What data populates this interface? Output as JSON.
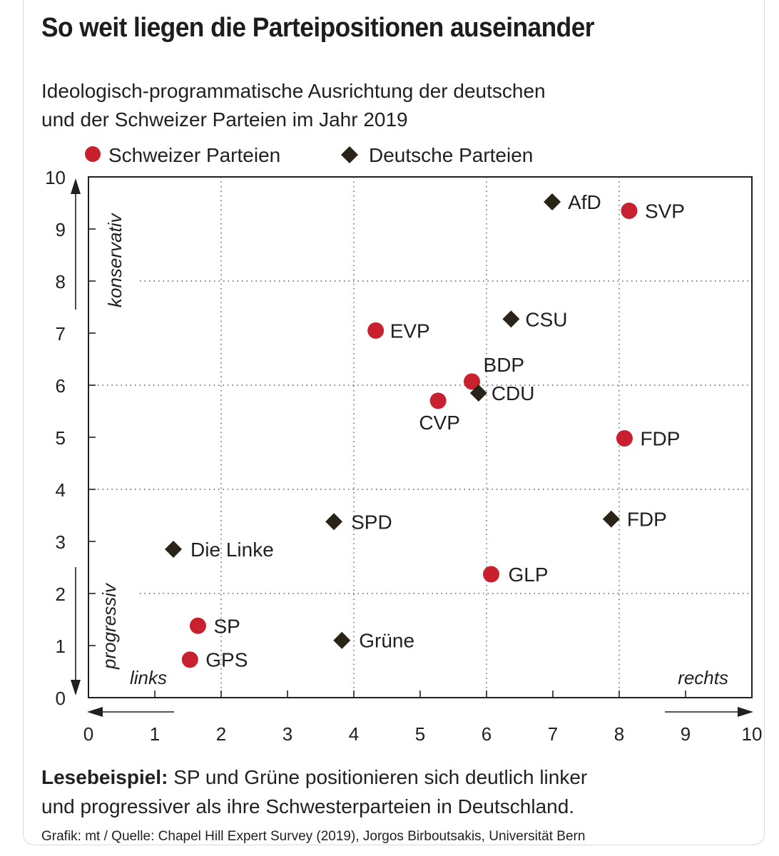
{
  "chart_data": {
    "type": "scatter",
    "title": "So weit liegen die Parteipositionen auseinander",
    "subtitle_lines": [
      "Ideologisch-programmatische Ausrichtung der deutschen",
      "und der Schweizer Parteien im Jahr 2019"
    ],
    "legend": [
      {
        "key": "swiss",
        "label": "Schweizer Parteien",
        "marker": "circle",
        "color": "#c8202f"
      },
      {
        "key": "german",
        "label": "Deutsche Parteien",
        "marker": "diamond",
        "color": "#2a2418"
      }
    ],
    "xlim": [
      0,
      10
    ],
    "ylim": [
      0,
      10
    ],
    "x_ticks": [
      "0",
      "1",
      "2",
      "3",
      "4",
      "5",
      "6",
      "7",
      "8",
      "9",
      "10"
    ],
    "y_ticks": [
      "0",
      "1",
      "2",
      "3",
      "4",
      "5",
      "6",
      "7",
      "8",
      "9",
      "10"
    ],
    "axis_annotations": {
      "y_top": "konservativ",
      "y_bottom": "progressiv",
      "x_left": "links",
      "x_right": "rechts"
    },
    "series": [
      {
        "name": "Schweizer Parteien",
        "key": "swiss",
        "points": [
          {
            "label": "SVP",
            "x": 8.15,
            "y": 9.35
          },
          {
            "label": "EVP",
            "x": 4.33,
            "y": 7.05
          },
          {
            "label": "BDP",
            "x": 5.78,
            "y": 6.07
          },
          {
            "label": "CVP",
            "x": 5.27,
            "y": 5.7
          },
          {
            "label": "FDP",
            "x": 8.08,
            "y": 4.98
          },
          {
            "label": "GLP",
            "x": 6.07,
            "y": 2.37
          },
          {
            "label": "SP",
            "x": 1.65,
            "y": 1.38
          },
          {
            "label": "GPS",
            "x": 1.53,
            "y": 0.73
          }
        ]
      },
      {
        "name": "Deutsche Parteien",
        "key": "german",
        "points": [
          {
            "label": "AfD",
            "x": 6.99,
            "y": 9.52
          },
          {
            "label": "CSU",
            "x": 6.37,
            "y": 7.27
          },
          {
            "label": "CDU",
            "x": 5.88,
            "y": 5.85
          },
          {
            "label": "FDP",
            "x": 7.88,
            "y": 3.43
          },
          {
            "label": "SPD",
            "x": 3.7,
            "y": 3.38
          },
          {
            "label": "Die Linke",
            "x": 1.28,
            "y": 2.85
          },
          {
            "label": "Grüne",
            "x": 3.82,
            "y": 1.1
          }
        ]
      }
    ]
  },
  "footer": {
    "example_label": "Lesebeispiel:",
    "example_text_1": "SP und Grüne positionieren sich deutlich linker",
    "example_text_2": "und progressiver als ihre Schwesterparteien in Deutschland.",
    "source": "Grafik: mt / Quelle: Chapel Hill Expert Survey (2019), Jorgos Birboutsakis, Universität Bern"
  }
}
